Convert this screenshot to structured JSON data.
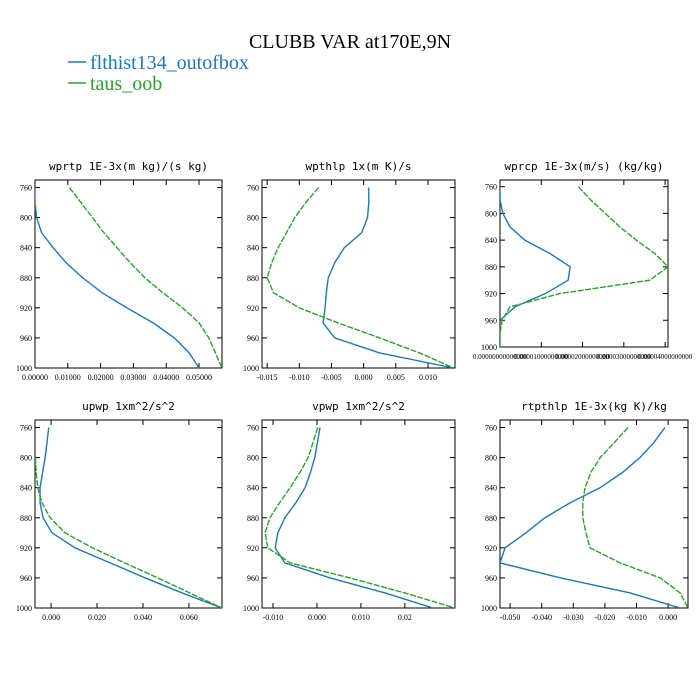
{
  "title": "CLUBB VAR at170E,9N",
  "chart_data": [
    {
      "type": "line",
      "title": "wprtp  1E-3x(m kg)/(s kg)",
      "y": [
        760,
        780,
        800,
        820,
        840,
        860,
        880,
        900,
        920,
        940,
        960,
        980,
        1000
      ],
      "ylim": [
        1000,
        750
      ],
      "yticks": [
        760,
        800,
        840,
        880,
        920,
        960,
        1000
      ],
      "xlim": [
        0,
        0.057
      ],
      "xticks": [
        {
          "value": 0,
          "label": "0.00000"
        },
        {
          "value": 0.01,
          "label": "0.01000"
        },
        {
          "value": 0.02,
          "label": "0.02000"
        },
        {
          "value": 0.03,
          "label": "0.03000"
        },
        {
          "value": 0.04,
          "label": "0.04000"
        },
        {
          "value": 0.05,
          "label": "0.05000"
        }
      ],
      "series": [
        {
          "name": "flthist134_outofbox",
          "color": "#1f77b4",
          "values": [
            0.0,
            0.0,
            0.0005,
            0.002,
            0.0055,
            0.0095,
            0.0145,
            0.0205,
            0.028,
            0.036,
            0.0425,
            0.047,
            0.05
          ]
        },
        {
          "name": "taus_oob",
          "color": "#2ca02c",
          "values": [
            0.0105,
            0.014,
            0.0175,
            0.021,
            0.025,
            0.029,
            0.0335,
            0.039,
            0.045,
            0.05,
            0.053,
            0.055,
            0.057
          ]
        }
      ]
    },
    {
      "type": "line",
      "title": "wpthlp  1x(m K)/s",
      "y": [
        760,
        780,
        800,
        820,
        840,
        860,
        880,
        900,
        920,
        940,
        960,
        980,
        1000
      ],
      "ylim": [
        1000,
        750
      ],
      "yticks": [
        760,
        800,
        840,
        880,
        920,
        960,
        1000
      ],
      "xlim": [
        -0.0158,
        0.0142
      ],
      "xticks": [
        -0.015,
        {
          "value": -0.01,
          "label": "-0.010"
        },
        -0.005,
        {
          "value": 0,
          "label": "0.000"
        },
        0.005,
        {
          "value": 0.01,
          "label": "0.010"
        }
      ],
      "series": [
        {
          "name": "flthist134_outofbox",
          "color": "#1f77b4",
          "values": [
            0.0008,
            0.0008,
            0.0006,
            -0.0003,
            -0.003,
            -0.0045,
            -0.0055,
            -0.0058,
            -0.006,
            -0.0063,
            -0.0045,
            0.0025,
            0.014
          ]
        },
        {
          "name": "taus_oob",
          "color": "#2ca02c",
          "values": [
            -0.007,
            -0.009,
            -0.0107,
            -0.012,
            -0.0133,
            -0.0143,
            -0.015,
            -0.014,
            -0.01,
            -0.004,
            0.0025,
            0.0087,
            0.014
          ]
        }
      ]
    },
    {
      "type": "line",
      "title": "wprcp  1E-3x(m/s) (kg/kg)",
      "y": [
        760,
        780,
        800,
        820,
        840,
        860,
        880,
        900,
        920,
        940,
        960,
        980,
        1000
      ],
      "ylim": [
        1000,
        750
      ],
      "yticks": [
        760,
        800,
        840,
        880,
        920,
        960,
        1000
      ],
      "xlim": [
        0,
        4.07e-05
      ],
      "xticks": [
        {
          "value": 0,
          "label": "0.00000000000000"
        },
        {
          "value": 1e-05,
          "label": "0.00001000000000"
        },
        {
          "value": 2e-05,
          "label": "0.00002000000000"
        },
        {
          "value": 3e-05,
          "label": "0.00003000000000"
        },
        {
          "value": 4e-05,
          "label": "0.00004000000000"
        }
      ],
      "series": [
        {
          "name": "flthist134_outofbox",
          "color": "#1f77b4",
          "values": [
            0.0,
            0.0,
            7e-07,
            2.4e-06,
            6e-06,
            1.21e-05,
            1.7e-05,
            1.65e-05,
            1.1e-05,
            3.6e-06,
            0.0,
            null,
            null
          ]
        },
        {
          "name": "taus_oob",
          "color": "#2ca02c",
          "values": [
            1.9e-05,
            2.2e-05,
            2.55e-05,
            2.9e-05,
            3.3e-05,
            3.75e-05,
            4.07e-05,
            3.63e-05,
            1.45e-05,
            2.4e-06,
            5e-07,
            0.0,
            0.0
          ]
        }
      ]
    },
    {
      "type": "line",
      "title": "upwp  1xm^2/s^2",
      "y": [
        760,
        780,
        800,
        820,
        840,
        860,
        880,
        900,
        920,
        940,
        960,
        980,
        1000
      ],
      "ylim": [
        1000,
        750
      ],
      "yticks": [
        760,
        800,
        840,
        880,
        920,
        960,
        1000
      ],
      "xlim": [
        -0.007,
        0.0744
      ],
      "xticks": [
        {
          "value": 0,
          "label": "0.000"
        },
        {
          "value": 0.02,
          "label": "0.020"
        },
        {
          "value": 0.04,
          "label": "0.040"
        },
        {
          "value": 0.06,
          "label": "0.060"
        }
      ],
      "series": [
        {
          "name": "flthist134_outofbox",
          "color": "#1f77b4",
          "values": [
            -0.001,
            -0.0018,
            -0.0026,
            -0.0037,
            -0.0048,
            -0.0048,
            -0.0035,
            0.0004,
            0.0104,
            0.0257,
            0.041,
            0.057,
            0.0744
          ]
        },
        {
          "name": "taus_oob",
          "color": "#2ca02c",
          "values": [
            null,
            null,
            -0.0068,
            -0.0065,
            -0.0058,
            -0.004,
            -0.0004,
            0.006,
            0.018,
            0.032,
            0.0465,
            0.0604,
            0.0744
          ]
        }
      ]
    },
    {
      "type": "line",
      "title": "vpwp  1xm^2/s^2",
      "y": [
        760,
        780,
        800,
        820,
        840,
        860,
        880,
        900,
        920,
        940,
        960,
        980,
        1000
      ],
      "ylim": [
        1000,
        750
      ],
      "yticks": [
        760,
        800,
        840,
        880,
        920,
        960,
        1000
      ],
      "xlim": [
        -0.0125,
        0.0314
      ],
      "xticks": [
        {
          "value": -0.01,
          "label": "-0.010"
        },
        {
          "value": 0,
          "label": "0.000"
        },
        {
          "value": 0.01,
          "label": "0.010"
        },
        0.02
      ],
      "series": [
        {
          "name": "flthist134_outofbox",
          "color": "#1f77b4",
          "values": [
            0.0007,
            0.0001,
            -0.0005,
            -0.0015,
            -0.0027,
            -0.0048,
            -0.0073,
            -0.0089,
            -0.0095,
            -0.0073,
            0.003,
            0.0155,
            0.0264
          ]
        },
        {
          "name": "taus_oob",
          "color": "#2ca02c",
          "values": [
            0.0002,
            -0.0009,
            -0.002,
            -0.0039,
            -0.0061,
            -0.0085,
            -0.0107,
            -0.0118,
            -0.0112,
            -0.0061,
            0.0075,
            0.02,
            0.0314
          ]
        }
      ]
    },
    {
      "type": "line",
      "title": "rtpthlp  1E-3x(kg K)/kg",
      "y": [
        760,
        780,
        800,
        820,
        840,
        860,
        880,
        900,
        920,
        940,
        960,
        980,
        1000
      ],
      "ylim": [
        1000,
        750
      ],
      "yticks": [
        760,
        800,
        840,
        880,
        920,
        960,
        1000
      ],
      "xlim": [
        -0.0532,
        0.0063
      ],
      "xticks": [
        {
          "value": -0.05,
          "label": "-0.050"
        },
        {
          "value": -0.04,
          "label": "-0.040"
        },
        {
          "value": -0.03,
          "label": "-0.030"
        },
        {
          "value": -0.02,
          "label": "-0.020"
        },
        {
          "value": -0.01,
          "label": "-0.010"
        },
        {
          "value": 0,
          "label": "0.000"
        }
      ],
      "series": [
        {
          "name": "flthist134_outofbox",
          "color": "#1f77b4",
          "values": [
            -0.001,
            -0.0045,
            -0.0089,
            -0.0145,
            -0.0215,
            -0.031,
            -0.039,
            -0.045,
            -0.0516,
            -0.0532,
            -0.034,
            -0.012,
            0.0038
          ]
        },
        {
          "name": "taus_oob",
          "color": "#2ca02c",
          "values": [
            -0.0127,
            -0.017,
            -0.0215,
            -0.0245,
            -0.0263,
            -0.027,
            -0.027,
            -0.026,
            -0.0247,
            -0.0152,
            -0.0025,
            0.0038,
            0.0063
          ]
        }
      ]
    }
  ]
}
